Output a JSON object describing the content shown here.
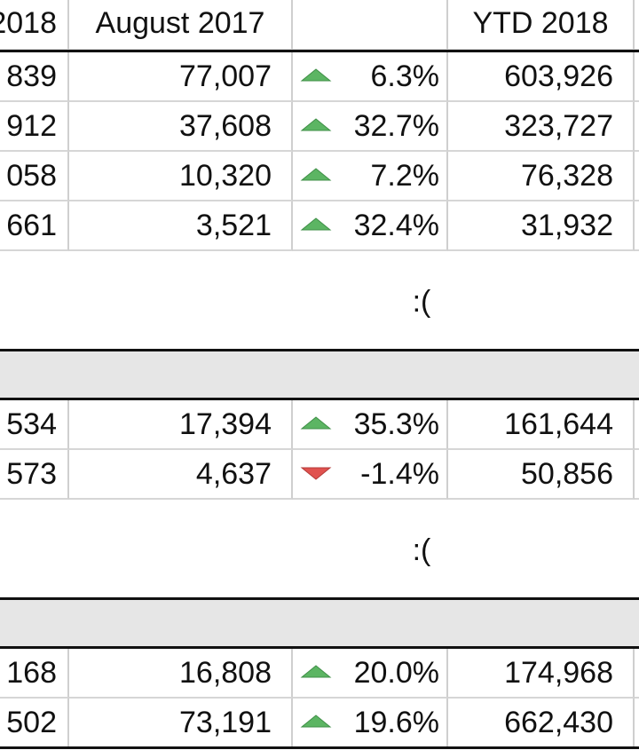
{
  "header": [
    "2018",
    "August 2017",
    "YTD 2018"
  ],
  "groups": [
    {
      "rows": [
        {
          "cells": [
            "839",
            "77,007",
            "6.3%",
            "603,926"
          ],
          "trend": "up"
        },
        {
          "cells": [
            "912",
            "37,608",
            "32.7%",
            "323,727"
          ],
          "trend": "up"
        },
        {
          "cells": [
            "058",
            "10,320",
            "7.2%",
            "76,328"
          ],
          "trend": "up"
        },
        {
          "cells": [
            "661",
            "3,521",
            "32.4%",
            "31,932"
          ],
          "trend": "up"
        }
      ]
    },
    {
      "note": ":(",
      "rows": [
        {
          "cells": [
            "534",
            "17,394",
            "35.3%",
            "161,644"
          ],
          "trend": "up"
        },
        {
          "cells": [
            "573",
            "4,637",
            "-1.4%",
            "50,856"
          ],
          "trend": "down"
        }
      ]
    },
    {
      "note": ":(",
      "rows": [
        {
          "cells": [
            "168",
            "16,808",
            "20.0%",
            "174,968"
          ],
          "trend": "up"
        },
        {
          "cells": [
            "502",
            "73,191",
            "19.6%",
            "662,430"
          ],
          "trend": "up"
        }
      ]
    }
  ]
}
